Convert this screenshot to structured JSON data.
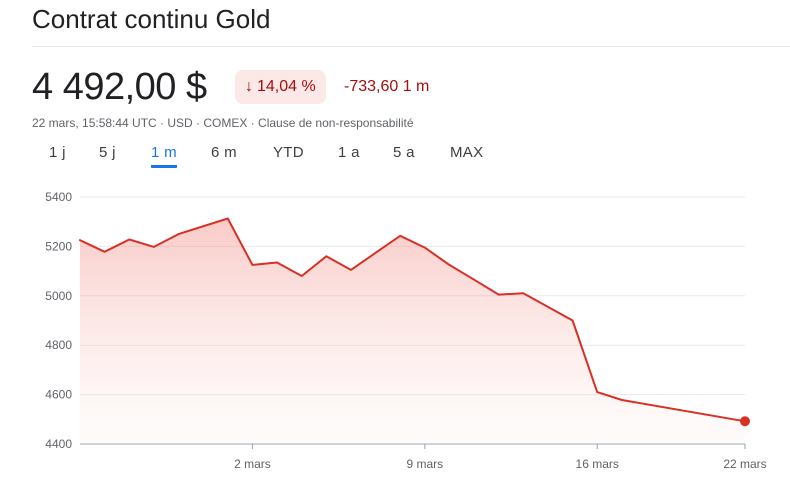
{
  "header": {
    "title": "Contrat continu Gold",
    "price": "4 492,00 $",
    "change_pct": "14,04 %",
    "change_abs": "-733,60 1 m",
    "meta": "22 mars, 15:58:44 UTC · USD · COMEX · Clause de non-responsabilité"
  },
  "colors": {
    "negative": "#a50e0e",
    "badge_bg": "#fce8e6",
    "line": "#d93025",
    "active_tab": "#1a73e8"
  },
  "ranges": [
    {
      "label": "1 j",
      "active": false
    },
    {
      "label": "5 j",
      "active": false
    },
    {
      "label": "1 m",
      "active": true
    },
    {
      "label": "6 m",
      "active": false
    },
    {
      "label": "YTD",
      "active": false
    },
    {
      "label": "1 a",
      "active": false
    },
    {
      "label": "5 a",
      "active": false
    },
    {
      "label": "MAX",
      "active": false
    }
  ],
  "chart_data": {
    "type": "area",
    "ylim": [
      4400,
      5400
    ],
    "yticks": [
      5400,
      5200,
      5000,
      4800,
      4600,
      4400
    ],
    "xlim": [
      "2026-02-23",
      "2026-03-22"
    ],
    "xticks": [
      {
        "date": "2026-03-02",
        "label": "2 mars"
      },
      {
        "date": "2026-03-09",
        "label": "9 mars"
      },
      {
        "date": "2026-03-16",
        "label": "16 mars"
      },
      {
        "date": "2026-03-22",
        "label": "22 mars"
      }
    ],
    "grid": true,
    "series": [
      {
        "points": [
          {
            "x": "2026-02-23",
            "y": 5225
          },
          {
            "x": "2026-02-24",
            "y": 5178
          },
          {
            "x": "2026-02-25",
            "y": 5228
          },
          {
            "x": "2026-02-26",
            "y": 5198
          },
          {
            "x": "2026-02-27",
            "y": 5250
          },
          {
            "x": "2026-03-01",
            "y": 5313
          },
          {
            "x": "2026-03-02",
            "y": 5125
          },
          {
            "x": "2026-03-03",
            "y": 5135
          },
          {
            "x": "2026-03-04",
            "y": 5080
          },
          {
            "x": "2026-03-05",
            "y": 5160
          },
          {
            "x": "2026-03-06",
            "y": 5105
          },
          {
            "x": "2026-03-08",
            "y": 5243
          },
          {
            "x": "2026-03-09",
            "y": 5195
          },
          {
            "x": "2026-03-10",
            "y": 5125
          },
          {
            "x": "2026-03-11",
            "y": 5065
          },
          {
            "x": "2026-03-12",
            "y": 5005
          },
          {
            "x": "2026-03-13",
            "y": 5010
          },
          {
            "x": "2026-03-15",
            "y": 4900
          },
          {
            "x": "2026-03-16",
            "y": 4610
          },
          {
            "x": "2026-03-17",
            "y": 4578
          },
          {
            "x": "2026-03-22",
            "y": 4492
          }
        ]
      }
    ]
  }
}
